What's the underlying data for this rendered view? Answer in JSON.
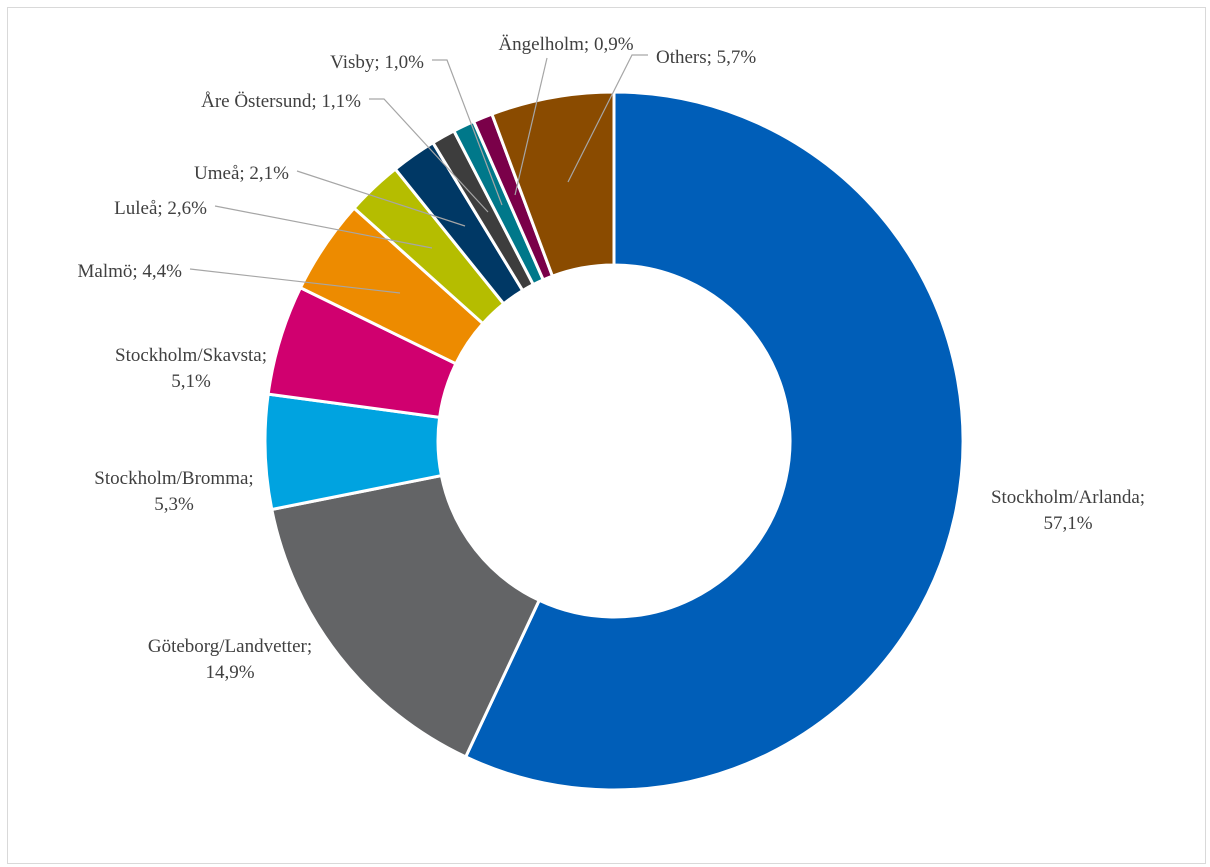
{
  "chart_data": {
    "type": "pie",
    "subtype": "doughnut",
    "title": "",
    "start_angle_deg": 0,
    "direction": "clockwise",
    "legend": "none",
    "label_format": "{category}; {percent}",
    "slices": [
      {
        "category": "Stockholm/Arlanda",
        "value": 57.1,
        "label": "57,1%",
        "color": "#005eb8"
      },
      {
        "category": "Göteborg/Landvetter",
        "value": 14.9,
        "label": "14,9%",
        "color": "#636466"
      },
      {
        "category": "Stockholm/Bromma",
        "value": 5.3,
        "label": "5,3%",
        "color": "#00a3e0"
      },
      {
        "category": "Stockholm/Skavsta",
        "value": 5.1,
        "label": "5,1%",
        "color": "#d0006f"
      },
      {
        "category": "Malmö",
        "value": 4.4,
        "label": "4,4%",
        "color": "#ed8b00"
      },
      {
        "category": "Luleå",
        "value": 2.6,
        "label": "2,6%",
        "color": "#b5bd00"
      },
      {
        "category": "Umeå",
        "value": 2.1,
        "label": "2,1%",
        "color": "#003865"
      },
      {
        "category": "Åre Östersund",
        "value": 1.1,
        "label": "1,1%",
        "color": "#3d3d3d"
      },
      {
        "category": "Visby",
        "value": 1.0,
        "label": "1,0%",
        "color": "#00788a"
      },
      {
        "category": "Ängelholm",
        "value": 0.9,
        "label": "0,9%",
        "color": "#7a0049"
      },
      {
        "category": "Others",
        "value": 5.7,
        "label": "5,7%",
        "color": "#8a4b00"
      }
    ]
  }
}
